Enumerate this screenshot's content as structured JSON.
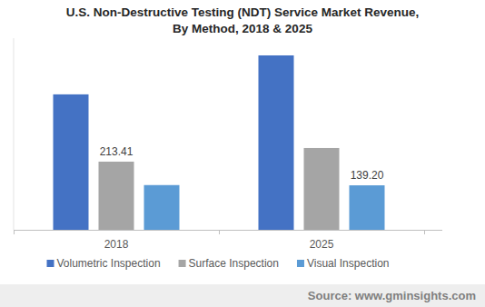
{
  "chart_data": {
    "type": "bar",
    "title": "U.S. Non-Destructive Testing (NDT) Service Market Revenue,\nBy Method, 2018 & 2025",
    "categories": [
      "2018",
      "2025"
    ],
    "series": [
      {
        "name": "Volumetric Inspection",
        "color": "#4472c4",
        "values": [
          424,
          546
        ],
        "value_labels": [
          null,
          null
        ]
      },
      {
        "name": "Surface Inspection",
        "color": "#a5a5a5",
        "values": [
          213.41,
          256
        ],
        "value_labels": [
          "213.41",
          null
        ]
      },
      {
        "name": "Visual Inspection",
        "color": "#5b9bd5",
        "values": [
          140,
          139.2
        ],
        "value_labels": [
          null,
          "139.20"
        ]
      }
    ],
    "ylim": [
      0,
      600
    ],
    "grid": false,
    "legend": "bottom",
    "data_labels": true,
    "tick_labels": "x",
    "annotations": [
      "Source: www.gminsights.com"
    ]
  }
}
